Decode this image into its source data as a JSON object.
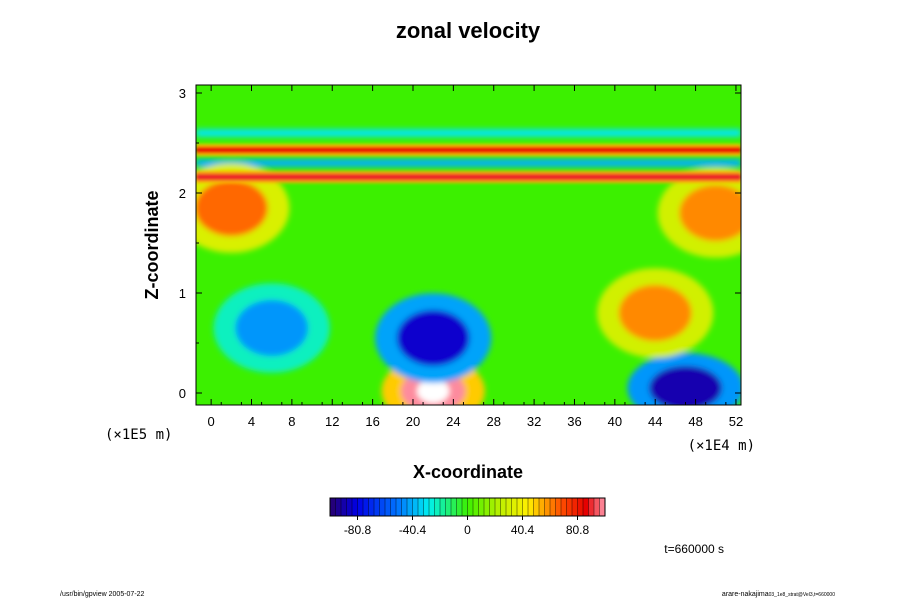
{
  "chart_data": {
    "type": "heatmap",
    "title": "zonal velocity",
    "xlabel": "X-coordinate",
    "ylabel": "Z-coordinate",
    "x_scale_label": "(×1E4 m)",
    "y_scale_label": "(×1E5 m)",
    "xlim": [
      -1.5,
      52.5
    ],
    "ylim": [
      -0.12,
      3.08
    ],
    "x_ticks": [
      "0",
      "4",
      "8",
      "12",
      "16",
      "20",
      "24",
      "28",
      "32",
      "36",
      "40",
      "44",
      "48",
      "52"
    ],
    "y_ticks": [
      "0",
      "1",
      "2",
      "3"
    ],
    "colorbar": {
      "range": [
        -101,
        101
      ],
      "ticks": [
        "-80.8",
        "-40.4",
        "0",
        "40.4",
        "80.8"
      ]
    },
    "features": [
      {
        "kind": "jet",
        "x": [
          -1.5,
          52.5
        ],
        "z": 2.43,
        "value": 85
      },
      {
        "kind": "jet",
        "x": [
          -1.5,
          52.5
        ],
        "z": 2.16,
        "value": 90
      },
      {
        "kind": "band",
        "x": [
          -1.5,
          52.5
        ],
        "z": 2.3,
        "value": -40
      },
      {
        "kind": "band",
        "x": [
          -1.5,
          52.5
        ],
        "z": 2.6,
        "value": -30
      },
      {
        "kind": "blob",
        "x": 22,
        "z": 0.02,
        "value": 100
      },
      {
        "kind": "blob",
        "x": 22,
        "z": 0.55,
        "value": -85
      },
      {
        "kind": "blob",
        "x": 47,
        "z": 0.05,
        "value": -90
      },
      {
        "kind": "blob",
        "x": 2,
        "z": 1.85,
        "value": 65
      },
      {
        "kind": "blob",
        "x": 50,
        "z": 1.8,
        "value": 60
      },
      {
        "kind": "blob",
        "x": 44,
        "z": 0.8,
        "value": 60
      },
      {
        "kind": "blob",
        "x": 6,
        "z": 0.65,
        "value": -45
      }
    ],
    "time_label": "t=660000 s"
  },
  "footer": {
    "left": "/usr/bin/gpview 2005-07-22",
    "right_main": "arare-nakajima",
    "right_sub": "03_1e8_strat@Vel3,t=660000"
  }
}
